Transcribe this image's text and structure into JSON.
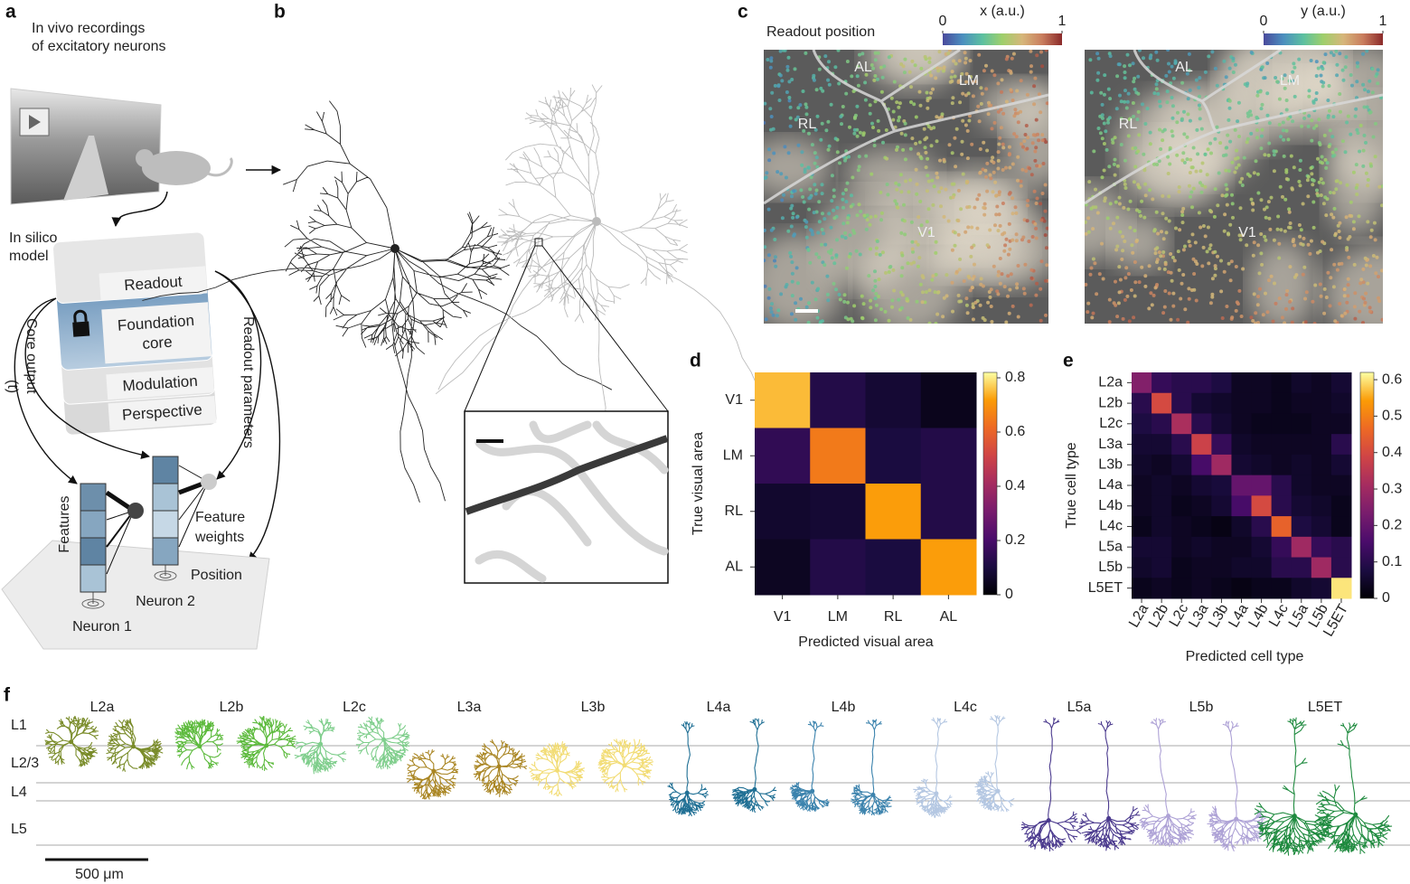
{
  "panel_labels": [
    "a",
    "b",
    "c",
    "d",
    "e",
    "f"
  ],
  "panel_a": {
    "recording_text": [
      "In vivo recordings",
      "of excitatory neurons"
    ],
    "model_text": [
      "In silico",
      "model"
    ],
    "readout": "Readout",
    "core": [
      "Foundation",
      "core"
    ],
    "modulation": "Modulation",
    "perspective": "Perspective",
    "core_output": "Core output",
    "time_symbol": "(t)",
    "readout_parameters": "Readout parameters",
    "features": "Features",
    "feature_weights": [
      "Feature",
      "weights"
    ],
    "position": "Position",
    "neuron_1": "Neuron 1",
    "neuron_2": "Neuron 2"
  },
  "panel_c": {
    "title": "Readout position",
    "maps": [
      {
        "colorbar_label": "x (a.u.)",
        "clim": [
          0,
          1
        ],
        "cticks": [
          0,
          1
        ],
        "areas": [
          "AL",
          "LM",
          "RL",
          "V1"
        ]
      },
      {
        "colorbar_label": "y (a.u.)",
        "clim": [
          0,
          1
        ],
        "cticks": [
          0,
          1
        ],
        "areas": [
          "AL",
          "LM",
          "RL",
          "V1"
        ]
      }
    ]
  },
  "panel_f": {
    "layers": [
      "L1",
      "L2/3",
      "L4",
      "L5"
    ],
    "scale_bar": "500 μm",
    "cell_types": [
      {
        "name": "L2a",
        "color": "#7a8c2a"
      },
      {
        "name": "L2b",
        "color": "#5cba3c"
      },
      {
        "name": "L2c",
        "color": "#7fce8c"
      },
      {
        "name": "L3a",
        "color": "#a98522"
      },
      {
        "name": "L3b",
        "color": "#f2dc74"
      },
      {
        "name": "L4a",
        "color": "#1f6f94"
      },
      {
        "name": "L4b",
        "color": "#3c83ad"
      },
      {
        "name": "L4c",
        "color": "#b4c7e2"
      },
      {
        "name": "L5a",
        "color": "#4b3a8e"
      },
      {
        "name": "L5b",
        "color": "#aea2d6"
      },
      {
        "name": "L5ET",
        "color": "#1e8a3e"
      }
    ]
  },
  "chart_data": [
    {
      "type": "heatmap",
      "x_label": "Predicted visual area",
      "y_label": "True visual area",
      "x_categories": [
        "V1",
        "LM",
        "RL",
        "AL"
      ],
      "y_categories": [
        "V1",
        "LM",
        "RL",
        "AL"
      ],
      "values": [
        [
          0.75,
          0.12,
          0.08,
          0.04
        ],
        [
          0.15,
          0.65,
          0.1,
          0.12
        ],
        [
          0.07,
          0.08,
          0.72,
          0.12
        ],
        [
          0.05,
          0.12,
          0.1,
          0.72
        ]
      ],
      "zlim": [
        0,
        0.82
      ],
      "zticks": [
        0,
        0.2,
        0.4,
        0.6,
        0.8
      ],
      "colormap": "inferno"
    },
    {
      "type": "heatmap",
      "x_label": "Predicted cell type",
      "y_label": "True cell type",
      "x_categories": [
        "L2a",
        "L2b",
        "L2c",
        "L3a",
        "L3b",
        "L4a",
        "L4b",
        "L4c",
        "L5a",
        "L5b",
        "L5ET"
      ],
      "y_categories": [
        "L2a",
        "L2b",
        "L2c",
        "L3a",
        "L3b",
        "L4a",
        "L4b",
        "L4c",
        "L5a",
        "L5b",
        "L5ET"
      ],
      "values": [
        [
          0.25,
          0.12,
          0.1,
          0.1,
          0.08,
          0.04,
          0.04,
          0.03,
          0.05,
          0.04,
          0.06
        ],
        [
          0.1,
          0.4,
          0.1,
          0.06,
          0.05,
          0.04,
          0.04,
          0.03,
          0.04,
          0.04,
          0.05
        ],
        [
          0.08,
          0.1,
          0.32,
          0.1,
          0.06,
          0.04,
          0.03,
          0.03,
          0.03,
          0.04,
          0.04
        ],
        [
          0.06,
          0.06,
          0.1,
          0.38,
          0.12,
          0.05,
          0.04,
          0.04,
          0.04,
          0.04,
          0.1
        ],
        [
          0.05,
          0.04,
          0.06,
          0.15,
          0.3,
          0.06,
          0.05,
          0.04,
          0.05,
          0.04,
          0.06
        ],
        [
          0.04,
          0.05,
          0.04,
          0.06,
          0.07,
          0.2,
          0.2,
          0.1,
          0.05,
          0.04,
          0.04
        ],
        [
          0.04,
          0.05,
          0.03,
          0.04,
          0.06,
          0.15,
          0.4,
          0.1,
          0.06,
          0.05,
          0.03
        ],
        [
          0.03,
          0.05,
          0.04,
          0.03,
          0.02,
          0.05,
          0.1,
          0.45,
          0.08,
          0.06,
          0.03
        ],
        [
          0.06,
          0.06,
          0.04,
          0.05,
          0.04,
          0.04,
          0.06,
          0.12,
          0.3,
          0.12,
          0.1
        ],
        [
          0.05,
          0.06,
          0.03,
          0.04,
          0.04,
          0.05,
          0.05,
          0.1,
          0.1,
          0.3,
          0.1
        ],
        [
          0.03,
          0.04,
          0.03,
          0.04,
          0.03,
          0.02,
          0.03,
          0.03,
          0.05,
          0.06,
          0.6
        ]
      ],
      "zlim": [
        0,
        0.62
      ],
      "zticks": [
        0,
        0.1,
        0.2,
        0.3,
        0.4,
        0.5,
        0.6
      ],
      "colormap": "inferno"
    }
  ]
}
